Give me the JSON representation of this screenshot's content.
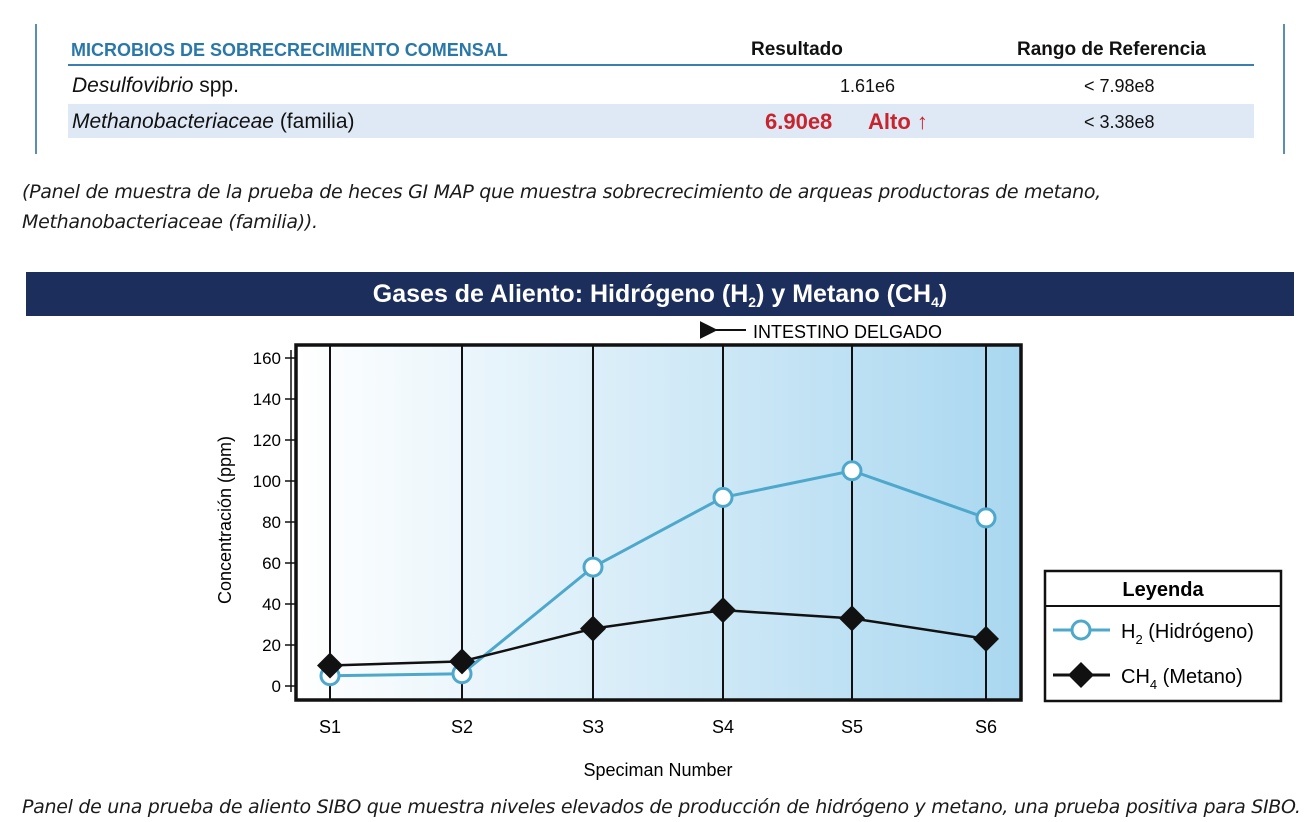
{
  "table": {
    "headers": {
      "section": "MICROBIOS DE SOBRECRECIMIENTO COMENSAL",
      "result": "Resultado",
      "reference": "Rango de Referencia"
    },
    "rows": [
      {
        "name_italic": "Desulfovibrio",
        "name_rest": " spp.",
        "result": "1.61e6",
        "flag": "",
        "reference": "< 7.98e8"
      },
      {
        "name_italic": "Methanobacteriaceae",
        "name_rest": " (familia)",
        "result": "6.90e8",
        "flag": "Alto ↑",
        "reference": "< 3.38e8"
      }
    ]
  },
  "caption_top": {
    "line1": "(Panel de muestra de la prueba de heces GI MAP que muestra sobrecrecimiento de arqueas productoras de metano,",
    "line2": "Methanobacteriaceae (familia))."
  },
  "chart_banner": {
    "prefix": "Gases de Aliento: Hidrógeno (H",
    "sub1": "2",
    "middle": ") y Metano (CH",
    "sub2": "4",
    "suffix": ")"
  },
  "chart_data": {
    "type": "line",
    "categories": [
      "S1",
      "S2",
      "S3",
      "S4",
      "S5",
      "S6"
    ],
    "series": [
      {
        "name_main": "H",
        "name_sub": "2",
        "name_rest": " (Hidrógeno)",
        "values": [
          5,
          6,
          58,
          92,
          105,
          82
        ],
        "color": "#4ea8cc",
        "marker": "circle"
      },
      {
        "name_main": "CH",
        "name_sub": "4",
        "name_rest": " (Metano)",
        "values": [
          10,
          12,
          28,
          37,
          33,
          23
        ],
        "color": "#111111",
        "marker": "diamond"
      }
    ],
    "ylim": [
      0,
      160
    ],
    "yticks": [
      0,
      20,
      40,
      60,
      80,
      100,
      120,
      140,
      160
    ],
    "ylabel": "Concentración (ppm)",
    "xlabel": "Speciman Number",
    "annotation": "INTESTINO DELGADO",
    "legend_title": "Leyenda",
    "legend_position": "right",
    "grid": true,
    "background_gradient": [
      "#ffffff",
      "#a9d7f0"
    ]
  },
  "caption_bottom": {
    "text": "Panel de una prueba de aliento SIBO que muestra niveles elevados de producción de hidrógeno y metano, una prueba positiva para SIBO."
  }
}
